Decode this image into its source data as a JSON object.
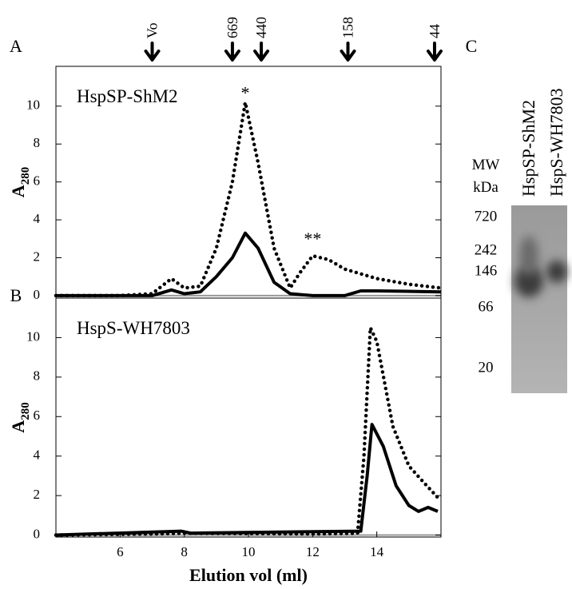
{
  "chart_data": [
    {
      "type": "line",
      "panel_label": "A",
      "title": "HspSP-ShM2",
      "ylabel": "A",
      "ylabel_sub": "280",
      "xlim": [
        4,
        16
      ],
      "ylim": [
        -0.13,
        12.1
      ],
      "yticks": [
        0,
        2,
        4,
        6,
        8,
        10
      ],
      "markers": [
        {
          "label": "Vo",
          "x": 7.0
        },
        {
          "label": "669",
          "x": 9.5
        },
        {
          "label": "440",
          "x": 10.4
        },
        {
          "label": "158",
          "x": 13.1
        },
        {
          "label": "44",
          "x": 15.8
        }
      ],
      "annotations": [
        {
          "text": "*",
          "x": 9.9,
          "y": 10.6
        },
        {
          "text": "**",
          "x": 12.0,
          "y": 2.9
        }
      ],
      "series": [
        {
          "color": "#000000",
          "style": "dotted",
          "x": [
            4,
            6,
            7,
            7.3,
            7.6,
            8,
            8.5,
            9,
            9.5,
            9.9,
            10.3,
            10.8,
            11.3,
            11.6,
            12,
            12.5,
            13,
            14,
            15,
            16
          ],
          "values": [
            0,
            0,
            0.1,
            0.5,
            0.9,
            0.4,
            0.5,
            2.5,
            6,
            10.2,
            7,
            2.5,
            0.4,
            1.2,
            2.1,
            1.9,
            1.4,
            0.9,
            0.6,
            0.4
          ]
        },
        {
          "color": "#000000",
          "style": "solid",
          "x": [
            4,
            7,
            7.6,
            8,
            8.5,
            9,
            9.5,
            9.9,
            10.3,
            10.8,
            11.3,
            12,
            13,
            13.2,
            13.5,
            14,
            16
          ],
          "values": [
            0,
            0,
            0.3,
            0.1,
            0.2,
            1,
            2,
            3.3,
            2.5,
            0.7,
            0.1,
            0,
            0,
            0.1,
            0.25,
            0.25,
            0.2
          ]
        }
      ]
    },
    {
      "type": "line",
      "panel_label": "B",
      "title": "HspS-WH7803",
      "ylabel": "A",
      "ylabel_sub": "280",
      "xlabel": "Elution vol (ml)",
      "xlim": [
        4,
        16
      ],
      "ylim": [
        -0.1,
        12
      ],
      "xticks": [
        6,
        8,
        10,
        12,
        14
      ],
      "yticks": [
        0,
        2,
        4,
        6,
        8,
        10
      ],
      "series": [
        {
          "color": "#000000",
          "style": "dotted",
          "x": [
            4,
            7,
            8,
            12,
            13.4,
            13.6,
            13.8,
            14,
            14.5,
            15,
            15.5,
            15.9
          ],
          "values": [
            0,
            0.05,
            0.1,
            0.05,
            0.1,
            4,
            10.5,
            9.8,
            5.5,
            3.5,
            2.6,
            1.9
          ]
        },
        {
          "color": "#000000",
          "style": "solid",
          "x": [
            4,
            7.9,
            8.2,
            13.5,
            13.7,
            13.85,
            14.2,
            14.6,
            15,
            15.3,
            15.6,
            15.9
          ],
          "values": [
            0,
            0.2,
            0.1,
            0.2,
            3,
            5.6,
            4.5,
            2.5,
            1.5,
            1.2,
            1.4,
            1.2
          ]
        }
      ]
    }
  ],
  "gel": {
    "panel_label": "C",
    "lanes": [
      "HspSP-ShM2",
      "HspS-WH7803"
    ],
    "mw_label": "MW",
    "unit_label": "kDa",
    "ladder": [
      720,
      242,
      146,
      66,
      20
    ]
  }
}
